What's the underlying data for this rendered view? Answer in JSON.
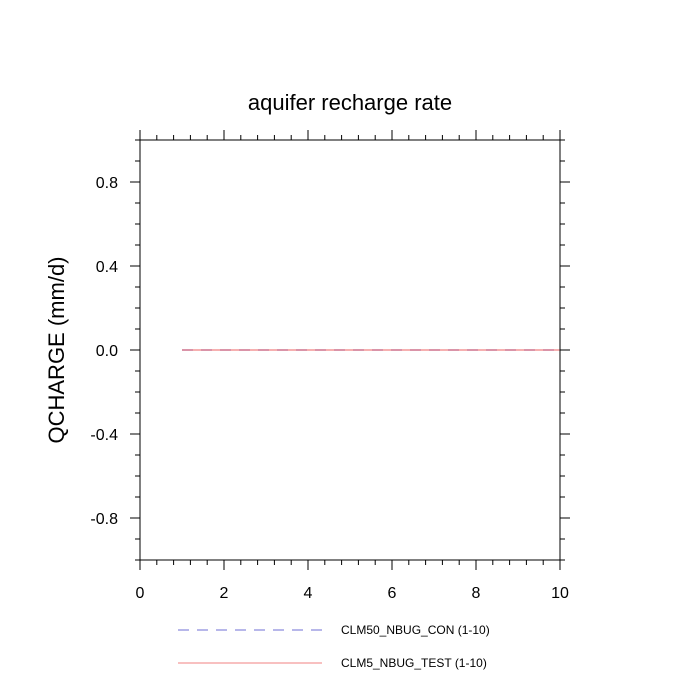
{
  "chart_data": {
    "type": "line",
    "title": "aquifer recharge rate",
    "xlabel": "",
    "ylabel": "QCHARGE  (mm/d)",
    "xlim": [
      0,
      10
    ],
    "ylim": [
      -1,
      1
    ],
    "x_ticks": [
      0,
      2,
      4,
      6,
      8,
      10
    ],
    "x_tick_labels": [
      "0",
      "2",
      "4",
      "6",
      "8",
      "10"
    ],
    "y_ticks": [
      -0.8,
      -0.4,
      0.0,
      0.4,
      0.8
    ],
    "y_tick_labels": [
      "-0.8",
      "-0.4",
      "0.0",
      "0.4",
      "0.8"
    ],
    "grid": false,
    "legend_position": "bottom",
    "series": [
      {
        "name": "CLM50_NBUG_CON (1-10)",
        "color": "#6f6fd6",
        "style": "dashed",
        "x": [
          1,
          2,
          3,
          4,
          5,
          6,
          7,
          8,
          9,
          10
        ],
        "y": [
          0,
          0,
          0,
          0,
          0,
          0,
          0,
          0,
          0,
          0
        ]
      },
      {
        "name": "CLM5_NBUG_TEST (1-10)",
        "color": "#f08080",
        "style": "solid",
        "x": [
          1,
          2,
          3,
          4,
          5,
          6,
          7,
          8,
          9,
          10
        ],
        "y": [
          0,
          0,
          0,
          0,
          0,
          0,
          0,
          0,
          0,
          0
        ]
      }
    ]
  }
}
